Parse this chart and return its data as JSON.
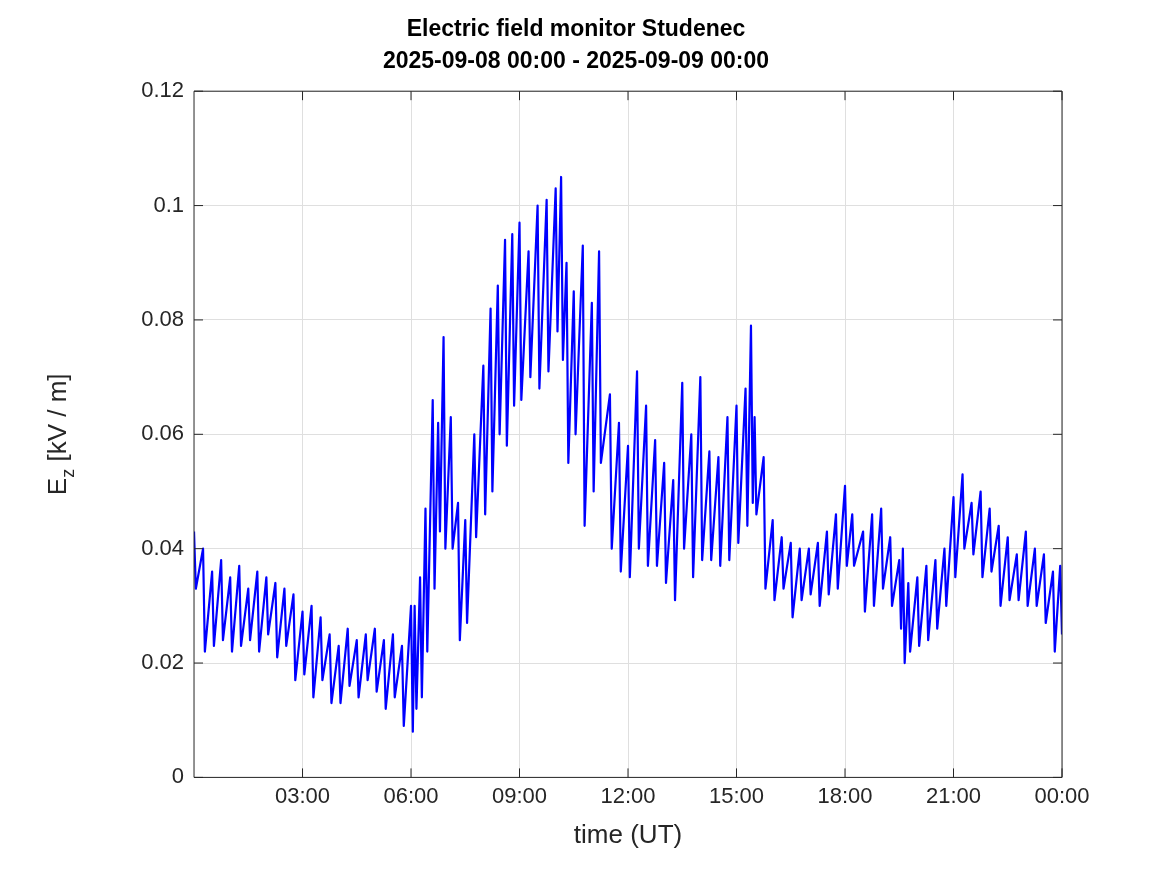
{
  "chart_data": {
    "type": "line",
    "title": "Electric field monitor Studenec",
    "subtitle": "2025-09-08 00:00 - 2025-09-09 00:00",
    "xlabel": "time (UT)",
    "ylabel": "E$_{z}$ [kV / m]",
    "xlim": [
      0,
      24
    ],
    "xticks": [
      {
        "value": 3,
        "label": "03:00"
      },
      {
        "value": 6,
        "label": "06:00"
      },
      {
        "value": 9,
        "label": "09:00"
      },
      {
        "value": 12,
        "label": "12:00"
      },
      {
        "value": 15,
        "label": "15:00"
      },
      {
        "value": 18,
        "label": "18:00"
      },
      {
        "value": 21,
        "label": "21:00"
      },
      {
        "value": 24,
        "label": "00:00"
      }
    ],
    "ylim": [
      0,
      0.12
    ],
    "yticks": [
      0,
      0.02,
      0.04,
      0.06,
      0.08,
      0.1,
      0.12
    ],
    "grid": true,
    "legend": false,
    "marker": "none",
    "line_style": "solid",
    "series": [
      {
        "color": "#0000ff",
        "x": [
          0,
          0.05,
          0.25,
          0.3,
          0.5,
          0.55,
          0.75,
          0.8,
          1,
          1.05,
          1.25,
          1.3,
          1.5,
          1.55,
          1.75,
          1.8,
          2,
          2.05,
          2.25,
          2.3,
          2.5,
          2.55,
          2.75,
          2.8,
          3,
          3.05,
          3.25,
          3.3,
          3.5,
          3.55,
          3.75,
          3.8,
          4,
          4.05,
          4.25,
          4.3,
          4.5,
          4.55,
          4.75,
          4.8,
          5,
          5.05,
          5.25,
          5.3,
          5.5,
          5.55,
          5.75,
          5.8,
          6,
          6.05,
          6.1,
          6.15,
          6.25,
          6.3,
          6.4,
          6.45,
          6.6,
          6.65,
          6.75,
          6.8,
          6.9,
          6.95,
          7.1,
          7.15,
          7.3,
          7.35,
          7.5,
          7.55,
          7.75,
          7.8,
          8,
          8.05,
          8.2,
          8.25,
          8.4,
          8.45,
          8.6,
          8.65,
          8.8,
          8.85,
          9,
          9.05,
          9.25,
          9.3,
          9.5,
          9.55,
          9.75,
          9.8,
          10,
          10.05,
          10.15,
          10.2,
          10.3,
          10.35,
          10.5,
          10.55,
          10.75,
          10.8,
          11,
          11.05,
          11.2,
          11.25,
          11.5,
          11.55,
          11.75,
          11.8,
          12,
          12.05,
          12.25,
          12.3,
          12.5,
          12.55,
          12.75,
          12.8,
          13,
          13.05,
          13.25,
          13.3,
          13.5,
          13.55,
          13.75,
          13.8,
          14,
          14.05,
          14.25,
          14.3,
          14.5,
          14.55,
          14.75,
          14.8,
          15,
          15.05,
          15.25,
          15.3,
          15.4,
          15.45,
          15.5,
          15.55,
          15.75,
          15.8,
          16,
          16.05,
          16.25,
          16.3,
          16.5,
          16.55,
          16.75,
          16.8,
          17,
          17.05,
          17.25,
          17.3,
          17.5,
          17.55,
          17.75,
          17.8,
          18,
          18.05,
          18.2,
          18.25,
          18.5,
          18.55,
          18.75,
          18.8,
          19,
          19.05,
          19.25,
          19.3,
          19.5,
          19.55,
          19.6,
          19.65,
          19.75,
          19.8,
          20,
          20.05,
          20.25,
          20.3,
          20.5,
          20.55,
          20.75,
          20.8,
          21,
          21.05,
          21.25,
          21.3,
          21.5,
          21.55,
          21.75,
          21.8,
          22,
          22.05,
          22.25,
          22.3,
          22.5,
          22.55,
          22.75,
          22.8,
          23,
          23.05,
          23.25,
          23.3,
          23.5,
          23.55,
          23.75,
          23.8,
          23.95,
          24
        ],
        "values": [
          0.043,
          0.033,
          0.04,
          0.022,
          0.036,
          0.023,
          0.038,
          0.024,
          0.035,
          0.022,
          0.037,
          0.023,
          0.033,
          0.024,
          0.036,
          0.022,
          0.035,
          0.025,
          0.034,
          0.021,
          0.033,
          0.023,
          0.032,
          0.017,
          0.029,
          0.018,
          0.03,
          0.014,
          0.028,
          0.017,
          0.025,
          0.013,
          0.023,
          0.013,
          0.026,
          0.016,
          0.024,
          0.014,
          0.025,
          0.017,
          0.026,
          0.015,
          0.024,
          0.012,
          0.025,
          0.014,
          0.023,
          0.009,
          0.03,
          0.008,
          0.03,
          0.012,
          0.035,
          0.014,
          0.047,
          0.022,
          0.066,
          0.033,
          0.062,
          0.043,
          0.077,
          0.04,
          0.063,
          0.04,
          0.048,
          0.024,
          0.045,
          0.027,
          0.06,
          0.042,
          0.072,
          0.046,
          0.082,
          0.05,
          0.086,
          0.06,
          0.094,
          0.058,
          0.095,
          0.065,
          0.097,
          0.066,
          0.092,
          0.07,
          0.1,
          0.068,
          0.101,
          0.071,
          0.103,
          0.078,
          0.105,
          0.073,
          0.09,
          0.055,
          0.085,
          0.06,
          0.093,
          0.044,
          0.083,
          0.05,
          0.092,
          0.055,
          0.067,
          0.04,
          0.062,
          0.036,
          0.058,
          0.035,
          0.071,
          0.04,
          0.065,
          0.037,
          0.059,
          0.037,
          0.055,
          0.034,
          0.052,
          0.031,
          0.069,
          0.04,
          0.06,
          0.035,
          0.07,
          0.038,
          0.057,
          0.038,
          0.056,
          0.037,
          0.063,
          0.038,
          0.065,
          0.041,
          0.068,
          0.044,
          0.079,
          0.048,
          0.063,
          0.046,
          0.056,
          0.033,
          0.045,
          0.031,
          0.042,
          0.033,
          0.041,
          0.028,
          0.04,
          0.031,
          0.04,
          0.032,
          0.041,
          0.03,
          0.043,
          0.032,
          0.046,
          0.033,
          0.051,
          0.037,
          0.046,
          0.037,
          0.043,
          0.029,
          0.046,
          0.03,
          0.047,
          0.033,
          0.042,
          0.03,
          0.038,
          0.026,
          0.04,
          0.02,
          0.034,
          0.022,
          0.035,
          0.023,
          0.037,
          0.024,
          0.038,
          0.026,
          0.04,
          0.03,
          0.049,
          0.035,
          0.053,
          0.04,
          0.048,
          0.039,
          0.05,
          0.035,
          0.047,
          0.036,
          0.044,
          0.03,
          0.042,
          0.031,
          0.039,
          0.031,
          0.043,
          0.03,
          0.04,
          0.03,
          0.039,
          0.027,
          0.036,
          0.022,
          0.037,
          0.025
        ]
      }
    ]
  }
}
